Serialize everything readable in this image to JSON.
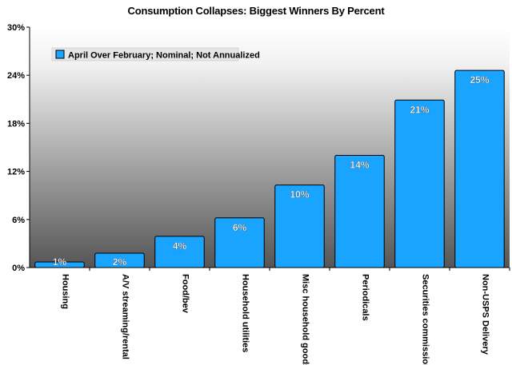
{
  "chart_data": {
    "type": "bar",
    "title": "Consumption Collapses: Biggest Winners By Percent",
    "categories": [
      "Housing",
      "A/V streaming/rental",
      "Food/bev",
      "Household utilities",
      "Misc household goods",
      "Periodicals",
      "Securities commissions",
      "Non-USPS Delivery"
    ],
    "series": [
      {
        "name": "April Over February; Nominal; Not Annualized",
        "values": [
          0.7,
          1.8,
          3.9,
          6.2,
          10.3,
          14.0,
          20.9,
          24.6
        ],
        "labels": [
          "1%",
          "2%",
          "4%",
          "6%",
          "10%",
          "14%",
          "21%",
          "25%"
        ]
      }
    ],
    "ylim": [
      0,
      30
    ],
    "yticks": [
      0,
      6,
      12,
      18,
      24,
      30
    ],
    "ytick_labels": [
      "0%",
      "6%",
      "12%",
      "18%",
      "24%",
      "30%"
    ],
    "xlabel": "",
    "ylabel": "",
    "legend_position": "top-left",
    "grid": false,
    "colors": {
      "bar": "#18a4ff",
      "bar_stroke": "#000000",
      "plot_bg_top": "#ffffff",
      "plot_bg_bottom": "#555555",
      "label_text": "#ffffff"
    }
  }
}
